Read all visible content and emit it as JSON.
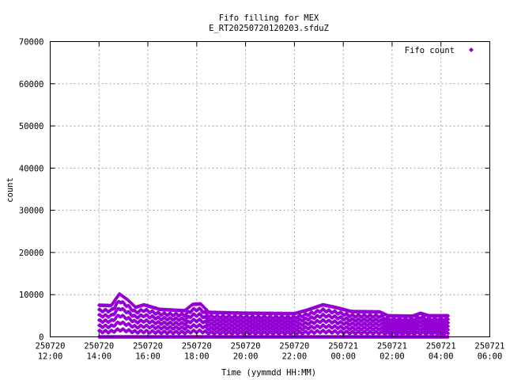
{
  "chart_data": {
    "type": "scatter",
    "title": "Fifo filling for MEX",
    "subtitle": "E_RT20250720120203.sfduZ",
    "xlabel": "Time (yymmdd HH:MM)",
    "ylabel": "count",
    "xlim": [
      "2025-07-20 12:00",
      "2025-07-21 06:00"
    ],
    "ylim": [
      0,
      70000
    ],
    "x_ticks": [
      {
        "date": "250720",
        "time": "12:00"
      },
      {
        "date": "250720",
        "time": "14:00"
      },
      {
        "date": "250720",
        "time": "16:00"
      },
      {
        "date": "250720",
        "time": "18:00"
      },
      {
        "date": "250720",
        "time": "20:00"
      },
      {
        "date": "250720",
        "time": "22:00"
      },
      {
        "date": "250721",
        "time": "00:00"
      },
      {
        "date": "250721",
        "time": "02:00"
      },
      {
        "date": "250721",
        "time": "04:00"
      },
      {
        "date": "250721",
        "time": "06:00"
      }
    ],
    "y_ticks": [
      "0",
      "10000",
      "20000",
      "30000",
      "40000",
      "50000",
      "60000",
      "70000"
    ],
    "grid": true,
    "legend_position": "top-right",
    "series": [
      {
        "name": "Fifo count",
        "color": "#9400d3",
        "marker": "diamond",
        "x_start": "2025-07-20 14:00",
        "x_end": "2025-07-21 04:18",
        "envelope_points": [
          {
            "x": "2025-07-20 14:00",
            "y": 7500
          },
          {
            "x": "2025-07-20 14:30",
            "y": 7400
          },
          {
            "x": "2025-07-20 14:50",
            "y": 10200
          },
          {
            "x": "2025-07-20 15:10",
            "y": 8800
          },
          {
            "x": "2025-07-20 15:30",
            "y": 7000
          },
          {
            "x": "2025-07-20 15:50",
            "y": 7600
          },
          {
            "x": "2025-07-20 16:30",
            "y": 6500
          },
          {
            "x": "2025-07-20 17:30",
            "y": 6200
          },
          {
            "x": "2025-07-20 17:50",
            "y": 7700
          },
          {
            "x": "2025-07-20 18:10",
            "y": 7800
          },
          {
            "x": "2025-07-20 18:30",
            "y": 5800
          },
          {
            "x": "2025-07-20 20:00",
            "y": 5600
          },
          {
            "x": "2025-07-20 22:00",
            "y": 5500
          },
          {
            "x": "2025-07-20 22:30",
            "y": 6300
          },
          {
            "x": "2025-07-20 23:10",
            "y": 7600
          },
          {
            "x": "2025-07-20 23:40",
            "y": 7000
          },
          {
            "x": "2025-07-21 00:20",
            "y": 6000
          },
          {
            "x": "2025-07-21 01:30",
            "y": 5900
          },
          {
            "x": "2025-07-21 01:50",
            "y": 5000
          },
          {
            "x": "2025-07-21 02:50",
            "y": 4900
          },
          {
            "x": "2025-07-21 03:10",
            "y": 5600
          },
          {
            "x": "2025-07-21 03:30",
            "y": 5000
          },
          {
            "x": "2025-07-21 04:18",
            "y": 5000
          }
        ],
        "band_count": 6
      }
    ]
  }
}
